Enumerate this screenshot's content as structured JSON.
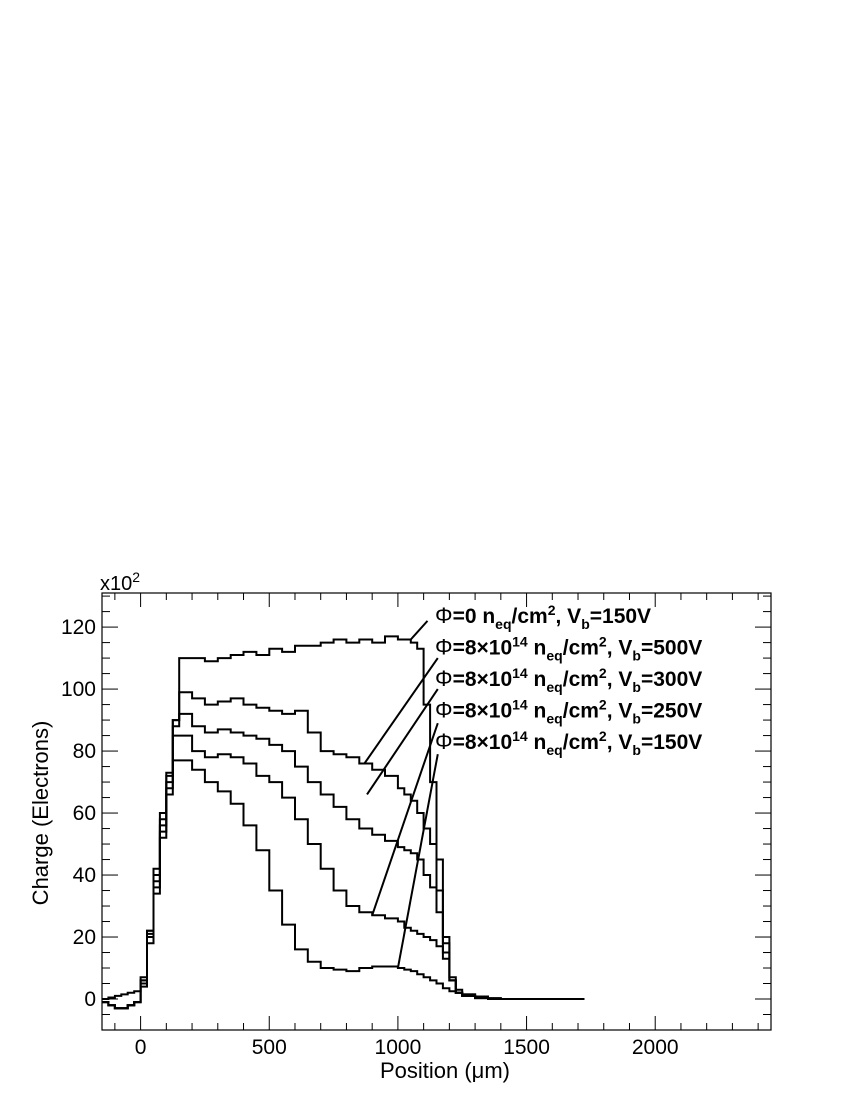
{
  "chart_data": {
    "type": "line",
    "xlabel": "Position (μm)",
    "ylabel": "Charge (Electrons)",
    "y_multiplier": "x10",
    "y_multiplier_exp": "2",
    "xlim": [
      -150,
      2450
    ],
    "ylim": [
      -10,
      131
    ],
    "x_ticks": [
      0,
      500,
      1000,
      1500,
      2000
    ],
    "y_ticks": [
      0,
      20,
      40,
      60,
      80,
      100,
      120
    ],
    "grid": false,
    "legend_placement": "top-right",
    "series": [
      {
        "name_parts": {
          "sym": "Φ",
          "a": "=0 n",
          "sub1": "eq",
          "b": "/cm",
          "sup2": "2",
          "c": ", V",
          "sub3": "b",
          "d": "=150V"
        },
        "x": [
          -150,
          -125,
          -100,
          -75,
          -50,
          -25,
          0,
          25,
          50,
          75,
          100,
          125,
          150,
          200,
          250,
          300,
          350,
          400,
          450,
          500,
          550,
          600,
          650,
          700,
          750,
          800,
          850,
          900,
          950,
          1000,
          1025,
          1050,
          1075,
          1100,
          1125,
          1150,
          1175,
          1200,
          1225,
          1250,
          1300,
          1350,
          1400,
          1450,
          1500,
          1550,
          1600,
          1650,
          1700
        ],
        "y": [
          0,
          0.5,
          1,
          1.5,
          2,
          2.5,
          7,
          22,
          42,
          60,
          73,
          90,
          110,
          110,
          109,
          110,
          111,
          112,
          111,
          113,
          112,
          114,
          114,
          115,
          116,
          115,
          116,
          115,
          117,
          116,
          116,
          115,
          113,
          95,
          70,
          45,
          20,
          6,
          2,
          1,
          0.5,
          0.2,
          0,
          0,
          0,
          0,
          0,
          0,
          0
        ]
      },
      {
        "name_parts": {
          "sym": "Φ",
          "a": "=8×10",
          "sup1": "14",
          "b": " n",
          "sub1": "eq",
          "c": "/cm",
          "sup2": "2",
          "d": ", V",
          "sub3": "b",
          "e": "=500V"
        },
        "x": [
          -150,
          -125,
          -100,
          -75,
          -50,
          -25,
          0,
          25,
          50,
          75,
          100,
          125,
          150,
          200,
          250,
          300,
          350,
          400,
          450,
          500,
          550,
          600,
          650,
          700,
          750,
          800,
          850,
          900,
          950,
          1000,
          1025,
          1050,
          1075,
          1100,
          1125,
          1150,
          1175,
          1200,
          1225,
          1250,
          1300,
          1350,
          1400,
          1450,
          1500,
          1550,
          1600,
          1650,
          1700
        ],
        "y": [
          -1,
          -2,
          -3,
          -3,
          -2,
          -1,
          6,
          22,
          40,
          58,
          72,
          90,
          99,
          97,
          95,
          96,
          97,
          95,
          94,
          93,
          92,
          93,
          86,
          80,
          79,
          78,
          76,
          74,
          72,
          68,
          66,
          64,
          60,
          55,
          50,
          35,
          18,
          7,
          3,
          1.5,
          0.5,
          0,
          0,
          0,
          0,
          0,
          0,
          0,
          0
        ]
      },
      {
        "name_parts": {
          "sym": "Φ",
          "a": "=8×10",
          "sup1": "14",
          "b": " n",
          "sub1": "eq",
          "c": "/cm",
          "sup2": "2",
          "d": ", V",
          "sub3": "b",
          "e": "=300V"
        },
        "x": [
          -150,
          -125,
          -100,
          -75,
          -50,
          -25,
          0,
          25,
          50,
          75,
          100,
          125,
          150,
          200,
          250,
          300,
          350,
          400,
          450,
          500,
          550,
          600,
          650,
          700,
          750,
          800,
          850,
          900,
          950,
          1000,
          1025,
          1050,
          1075,
          1100,
          1125,
          1150,
          1175,
          1200,
          1225,
          1250,
          1300,
          1350,
          1400,
          1450,
          1500,
          1550,
          1600,
          1650,
          1700
        ],
        "y": [
          -1,
          -2,
          -3,
          -3,
          -2,
          -1,
          6,
          21,
          38,
          56,
          70,
          88,
          92,
          88,
          86,
          87,
          86,
          85,
          84,
          82,
          80,
          75,
          70,
          66,
          62,
          58,
          55,
          53,
          51,
          49,
          48,
          47,
          45,
          40,
          36,
          28,
          15,
          6,
          2,
          1,
          0.3,
          0,
          0,
          0,
          0,
          0,
          0,
          0,
          0
        ]
      },
      {
        "name_parts": {
          "sym": "Φ",
          "a": "=8×10",
          "sup1": "14",
          "b": " n",
          "sub1": "eq",
          "c": "/cm",
          "sup2": "2",
          "d": ", V",
          "sub3": "b",
          "e": "=250V"
        },
        "x": [
          -150,
          -125,
          -100,
          -75,
          -50,
          -25,
          0,
          25,
          50,
          75,
          100,
          125,
          150,
          200,
          250,
          300,
          350,
          400,
          450,
          500,
          550,
          600,
          650,
          700,
          750,
          800,
          850,
          900,
          950,
          1000,
          1025,
          1050,
          1075,
          1100,
          1125,
          1150,
          1175,
          1200,
          1225,
          1250,
          1300,
          1350,
          1400,
          1450,
          1500,
          1550,
          1600,
          1650,
          1700
        ],
        "y": [
          -1,
          -2,
          -3,
          -3,
          -2,
          -1,
          5,
          20,
          36,
          54,
          68,
          85,
          85,
          80,
          78,
          79,
          78,
          76,
          72,
          70,
          65,
          58,
          50,
          42,
          35,
          30,
          28,
          27,
          26,
          25,
          23,
          22,
          21,
          20,
          19,
          17,
          13,
          6,
          2,
          1,
          0.3,
          0,
          0,
          0,
          0,
          0,
          0,
          0,
          0
        ]
      },
      {
        "name_parts": {
          "sym": "Φ",
          "a": "=8×10",
          "sup1": "14",
          "b": " n",
          "sub1": "eq",
          "c": "/cm",
          "sup2": "2",
          "d": ", V",
          "sub3": "b",
          "e": "=150V"
        },
        "x": [
          -150,
          -125,
          -100,
          -75,
          -50,
          -25,
          0,
          25,
          50,
          75,
          100,
          125,
          150,
          200,
          250,
          300,
          350,
          400,
          450,
          500,
          550,
          600,
          650,
          700,
          750,
          800,
          850,
          900,
          950,
          1000,
          1025,
          1050,
          1075,
          1100,
          1125,
          1150,
          1175,
          1200,
          1225,
          1250,
          1300,
          1350,
          1400,
          1450,
          1500,
          1550,
          1600,
          1650,
          1700
        ],
        "y": [
          -1,
          -2,
          -3,
          -3,
          -2,
          -1,
          4,
          18,
          34,
          52,
          66,
          77,
          77,
          74,
          70,
          67,
          63,
          56,
          48,
          35,
          24,
          16,
          12,
          10,
          9.5,
          9,
          10,
          10.5,
          10.5,
          10,
          9.5,
          9,
          8,
          7,
          6,
          5,
          3.5,
          2.5,
          2,
          1.5,
          0.8,
          0.3,
          0,
          0,
          0,
          0,
          0,
          0,
          0
        ]
      }
    ],
    "annotations": [
      {
        "from": [
          1050,
          116
        ],
        "to": [
          1115,
          122
        ]
      },
      {
        "from": [
          870,
          76
        ],
        "to": [
          1155,
          110
        ]
      },
      {
        "from": [
          880,
          66
        ],
        "to": [
          1155,
          100
        ]
      },
      {
        "from": [
          900,
          27
        ],
        "to": [
          1155,
          89
        ]
      },
      {
        "from": [
          1000,
          10
        ],
        "to": [
          1155,
          79
        ]
      }
    ]
  }
}
